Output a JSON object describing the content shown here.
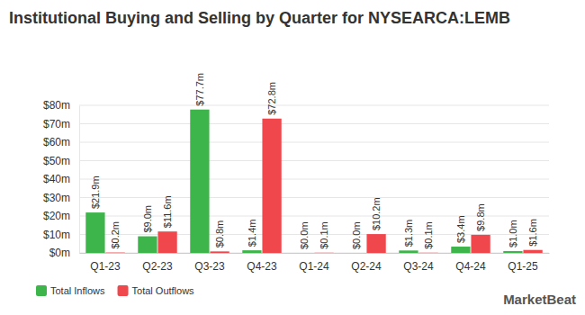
{
  "chart_data": {
    "type": "bar",
    "title": "Institutional Buying and Selling by Quarter for NYSEARCA:LEMB",
    "categories": [
      "Q1-23",
      "Q2-23",
      "Q3-23",
      "Q4-23",
      "Q1-24",
      "Q2-24",
      "Q3-24",
      "Q4-24",
      "Q1-25"
    ],
    "series": [
      {
        "name": "Total Inflows",
        "color": "#3db54a",
        "values": [
          21.9,
          9.0,
          77.7,
          1.4,
          0.0,
          0.0,
          1.3,
          3.4,
          1.0
        ],
        "value_labels": [
          "$21.9m",
          "$9.0m",
          "$77.7m",
          "$1.4m",
          "$0.0m",
          "$0.0m",
          "$1.3m",
          "$3.4m",
          "$1.0m"
        ]
      },
      {
        "name": "Total Outflows",
        "color": "#f0474d",
        "values": [
          0.2,
          11.6,
          0.8,
          72.8,
          0.1,
          10.2,
          0.1,
          9.8,
          1.6
        ],
        "value_labels": [
          "$0.2m",
          "$11.6m",
          "$0.8m",
          "$72.8m",
          "$0.1m",
          "$10.2m",
          "$0.1m",
          "$9.8m",
          "$1.6m"
        ]
      }
    ],
    "ylim": [
      0,
      80
    ],
    "yticks": [
      {
        "value": 0,
        "label": "$0m"
      },
      {
        "value": 10,
        "label": "$10m"
      },
      {
        "value": 20,
        "label": "$20m"
      },
      {
        "value": 30,
        "label": "$30m"
      },
      {
        "value": 40,
        "label": "$40m"
      },
      {
        "value": 50,
        "label": "$50m"
      },
      {
        "value": 60,
        "label": "$60m"
      },
      {
        "value": 70,
        "label": "$70m"
      },
      {
        "value": 80,
        "label": "$80m"
      }
    ],
    "grid": true,
    "data_labels": true,
    "legend": "bottom-left",
    "annotations": [
      "MarketBeat"
    ]
  }
}
